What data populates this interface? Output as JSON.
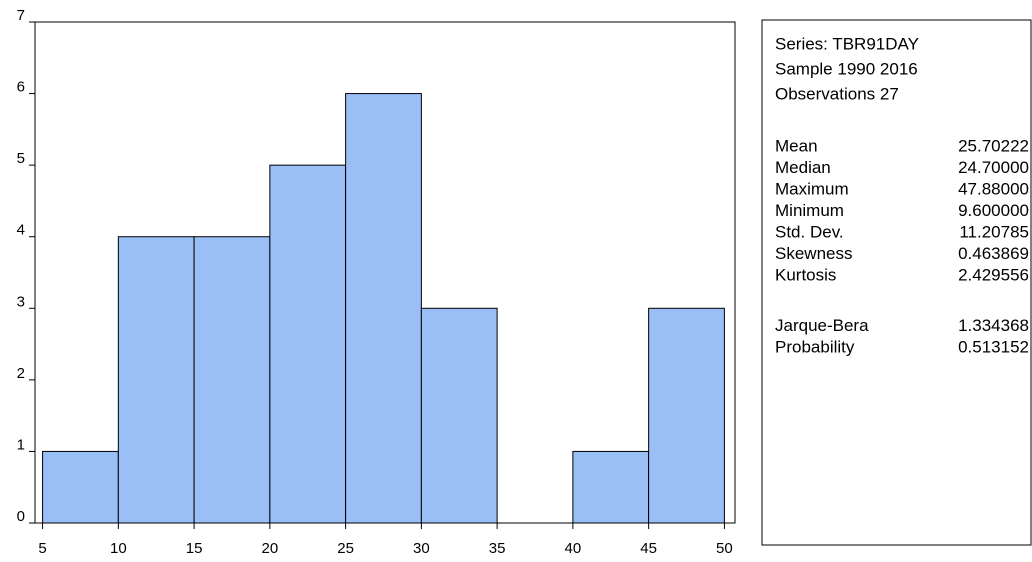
{
  "chart_data": {
    "type": "histogram",
    "bins": [
      5,
      10,
      15,
      20,
      25,
      30,
      35,
      40,
      45,
      50
    ],
    "values": [
      1,
      4,
      4,
      5,
      6,
      3,
      0,
      1,
      3
    ],
    "color": "#9abff7",
    "xlim": [
      4.5,
      50.7
    ],
    "xticks": [
      5,
      10,
      15,
      20,
      25,
      30,
      35,
      40,
      45,
      50
    ],
    "ylim": [
      0,
      7
    ],
    "yticks": [
      0,
      1,
      2,
      3,
      4,
      5,
      6,
      7
    ]
  },
  "stats": {
    "header": [
      "Series: TBR91DAY",
      "Sample 1990 2016",
      "Observations 27"
    ],
    "rows": [
      [
        "Mean",
        "25.70222"
      ],
      [
        "Median",
        "24.70000"
      ],
      [
        "Maximum",
        "47.88000"
      ],
      [
        "Minimum",
        "9.600000"
      ],
      [
        "Std. Dev.",
        "11.20785"
      ],
      [
        "Skewness",
        "0.463869"
      ],
      [
        "Kurtosis",
        "2.429556"
      ]
    ],
    "tests": [
      [
        "Jarque-Bera",
        "1.334368"
      ],
      [
        "Probability",
        "0.513152"
      ]
    ]
  }
}
